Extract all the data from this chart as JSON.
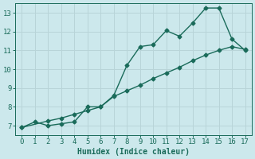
{
  "xlabel": "Humidex (Indice chaleur)",
  "xlim": [
    -0.5,
    17.5
  ],
  "ylim": [
    6.5,
    13.5
  ],
  "xticks": [
    0,
    1,
    2,
    3,
    4,
    5,
    6,
    7,
    8,
    9,
    10,
    11,
    12,
    13,
    14,
    15,
    16,
    17
  ],
  "yticks": [
    7,
    8,
    9,
    10,
    11,
    12,
    13
  ],
  "bg_color": "#cce8ec",
  "grid_color": "#b8d4d8",
  "line_color": "#1a6b5a",
  "line1_x": [
    0,
    1,
    2,
    3,
    4,
    5,
    6,
    7,
    8,
    9,
    10,
    11,
    12,
    13,
    14,
    15,
    16,
    17
  ],
  "line1_y": [
    6.9,
    7.2,
    7.0,
    7.1,
    7.2,
    8.0,
    8.0,
    8.6,
    10.2,
    11.2,
    11.3,
    12.05,
    11.75,
    12.45,
    13.25,
    13.25,
    11.6,
    11.0
  ],
  "line2_x": [
    0,
    2,
    3,
    4,
    5,
    6,
    7,
    8,
    9,
    10,
    11,
    12,
    13,
    14,
    15,
    16,
    17
  ],
  "line2_y": [
    6.9,
    7.25,
    7.4,
    7.6,
    7.8,
    8.0,
    8.55,
    8.85,
    9.15,
    9.5,
    9.8,
    10.1,
    10.45,
    10.75,
    11.0,
    11.2,
    11.05
  ],
  "marker": "D",
  "markersize": 2.5,
  "linewidth": 1.0,
  "label_fontsize": 7,
  "tick_fontsize": 6.5
}
